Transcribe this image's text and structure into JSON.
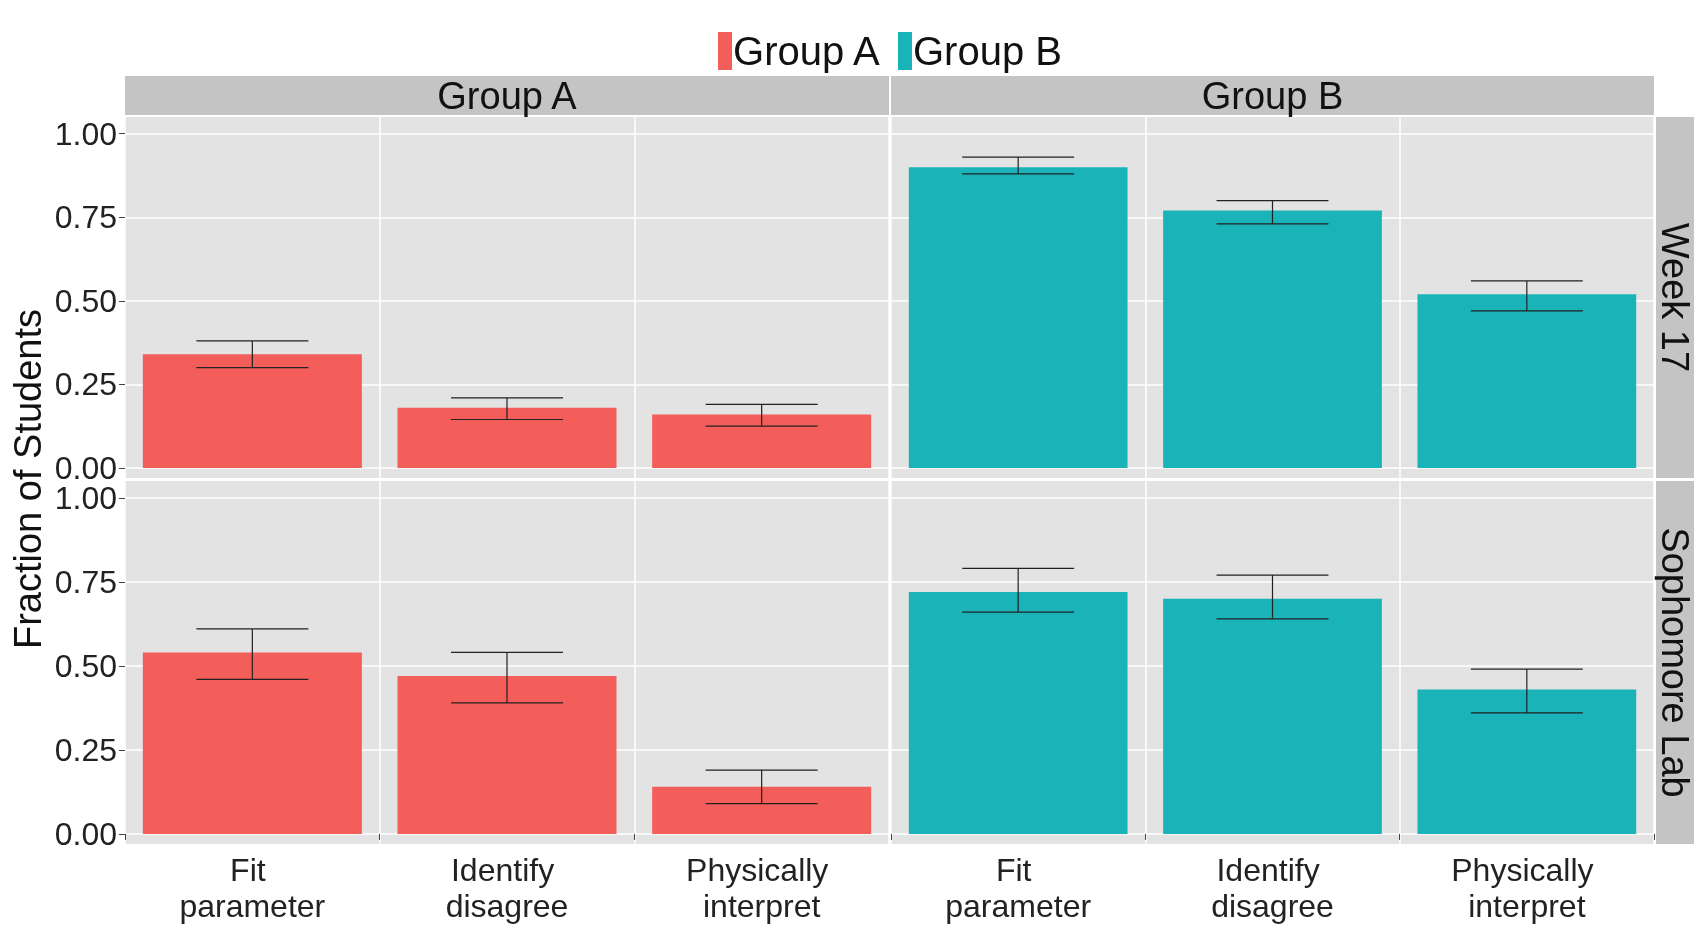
{
  "chart_data": [
    {
      "type": "bar",
      "title": "Group A",
      "ylabel": "Fraction of Students",
      "categories": [
        "Fit parameter",
        "Identify disagree",
        "Physically interpret"
      ],
      "series": [
        {
          "name": "Group A",
          "color": "#f35e5a",
          "values": [
            0.34,
            0.18,
            0.16
          ],
          "errors": [
            [
              0.3,
              0.38
            ],
            [
              0.145,
              0.21
            ],
            [
              0.125,
              0.19
            ]
          ]
        }
      ],
      "ylim": [
        -0.03,
        1.05
      ],
      "yticks": [
        {
          "value": 0,
          "label": "0.00"
        },
        {
          "value": 0.25,
          "label": "0.25"
        },
        {
          "value": 0.5,
          "label": "0.50"
        },
        {
          "value": 0.75,
          "label": "0.75"
        },
        {
          "value": 1,
          "label": "1.00"
        }
      ],
      "grid": true,
      "legend": "top",
      "tick_labels": "y"
    },
    {
      "type": "bar",
      "title": "Group B",
      "annotations": [
        "Week 17"
      ],
      "categories": [
        "Fit parameter",
        "Identify disagree",
        "Physically interpret"
      ],
      "series": [
        {
          "name": "Group B",
          "color": "#19b3b8",
          "values": [
            0.9,
            0.77,
            0.52
          ],
          "errors": [
            [
              0.88,
              0.93
            ],
            [
              0.73,
              0.8
            ],
            [
              0.47,
              0.56
            ]
          ]
        }
      ],
      "ylim": [
        -0.03,
        1.05
      ],
      "yticks": [
        0,
        0.25,
        0.5,
        0.75,
        1
      ],
      "grid": true,
      "legend": "top",
      "tick_labels": false
    },
    {
      "type": "bar",
      "categories": [
        "Fit parameter",
        "Identify disagree",
        "Physically interpret"
      ],
      "series": [
        {
          "color": "#f35e5a",
          "values": [
            0.54,
            0.47,
            0.14
          ],
          "errors": [
            [
              0.46,
              0.61
            ],
            [
              0.39,
              0.54
            ],
            [
              0.09,
              0.19
            ]
          ]
        }
      ],
      "ylim": [
        -0.03,
        1.05
      ],
      "yticks": [
        {
          "value": 0,
          "label": "0.00"
        },
        {
          "value": 0.25,
          "label": "0.25"
        },
        {
          "value": 0.5,
          "label": "0.50"
        },
        {
          "value": 0.75,
          "label": "0.75"
        },
        {
          "value": 1,
          "label": "1.00"
        }
      ],
      "grid": true
    },
    {
      "type": "bar",
      "annotations": [
        "Sophomore Lab"
      ],
      "categories": [
        "Fit parameter",
        "Identify disagree",
        "Physically interpret"
      ],
      "series": [
        {
          "color": "#19b3b8",
          "values": [
            0.72,
            0.7,
            0.43
          ],
          "errors": [
            [
              0.66,
              0.79
            ],
            [
              0.64,
              0.77
            ],
            [
              0.36,
              0.49
            ]
          ]
        }
      ],
      "ylim": [
        -0.03,
        1.05
      ],
      "yticks": [
        0,
        0.25,
        0.5,
        0.75,
        1
      ],
      "grid": true,
      "tick_labels": "x"
    }
  ]
}
